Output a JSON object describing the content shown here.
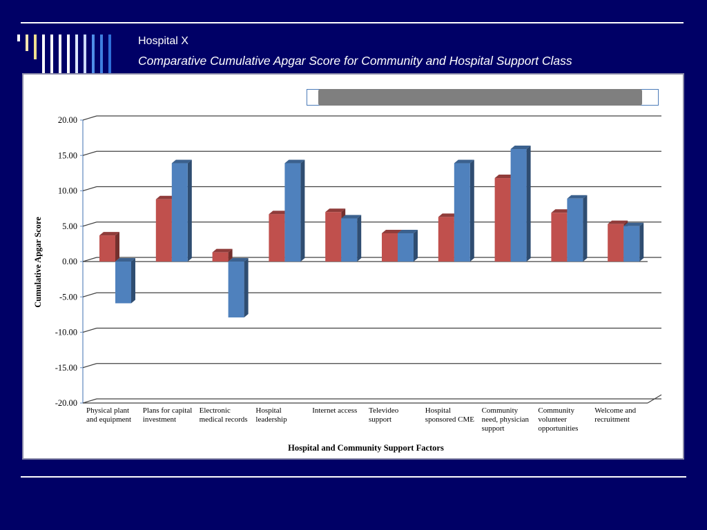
{
  "slide": {
    "title_line1": "Hospital X",
    "title_line2": "Comparative Cumulative Apgar Score for Community and Hospital Support Class"
  },
  "colors": {
    "background": "#000066",
    "series_red": "#c0504d",
    "series_blue": "#4f81bd",
    "legend_bar": "#7f7f7f"
  },
  "chart_data": {
    "type": "bar",
    "xlabel": "Hospital and Community  Support  Factors",
    "ylabel": "Cumulative Apgar Score",
    "ylim": [
      -20,
      20
    ],
    "yticks": [
      "20.00",
      "15.00",
      "10.00",
      "5.00",
      "0.00",
      "-5.00",
      "-10.00",
      "-15.00",
      "-20.00"
    ],
    "grid": true,
    "legend_placement": "top",
    "categories": [
      [
        "Physical plant",
        "and equipment"
      ],
      [
        "Plans for capital",
        "investment"
      ],
      [
        "Electronic",
        "medical records"
      ],
      [
        "Hospital",
        "leadership"
      ],
      [
        "Internet access"
      ],
      [
        "Televideo",
        "support"
      ],
      [
        "Hospital",
        "sponsored CME"
      ],
      [
        "Community",
        "need, physician",
        "support"
      ],
      [
        "Community",
        "volunteer",
        "opportunities"
      ],
      [
        "Welcome and",
        "recruitment"
      ]
    ],
    "series": [
      {
        "color": "#c0504d",
        "values": [
          3.7,
          8.8,
          1.3,
          6.7,
          7.0,
          4.0,
          6.3,
          11.8,
          6.9,
          5.3
        ]
      },
      {
        "color": "#4f81bd",
        "values": [
          -5.9,
          13.9,
          -7.9,
          13.9,
          6.1,
          4.0,
          13.9,
          15.9,
          8.9,
          5.0
        ]
      }
    ]
  }
}
